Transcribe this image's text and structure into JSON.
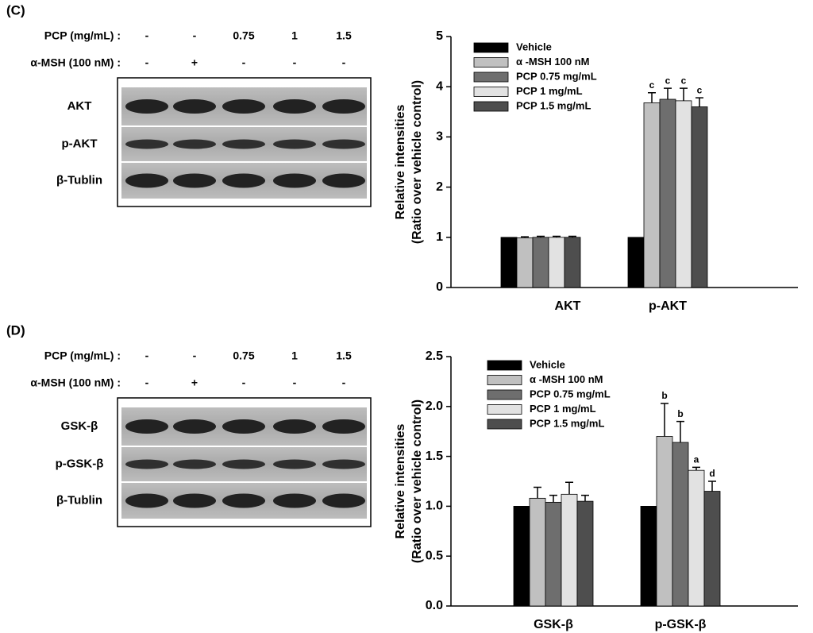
{
  "panels": [
    {
      "label": "(C)",
      "rows": [
        {
          "name": "PCP (mg/mL) :",
          "cells": [
            "-",
            "-",
            "0.75",
            "1",
            "1.5"
          ]
        },
        {
          "name": "α-MSH (100 nM) :",
          "cells": [
            "-",
            "+",
            "-",
            "-",
            "-"
          ]
        }
      ],
      "blots": [
        "AKT",
        "p-AKT",
        "β-Tublin"
      ]
    },
    {
      "label": "(D)",
      "rows": [
        {
          "name": "PCP (mg/mL) :",
          "cells": [
            "-",
            "-",
            "0.75",
            "1",
            "1.5"
          ]
        },
        {
          "name": "α-MSH (100 nM) :",
          "cells": [
            "-",
            "+",
            "-",
            "-",
            "-"
          ]
        }
      ],
      "blots": [
        "GSK-β",
        "p-GSK-β",
        "β-Tublin"
      ]
    }
  ],
  "chart_data": [
    {
      "type": "bar",
      "categories": [
        "AKT",
        "p-AKT"
      ],
      "y_label": [
        "Relative intensities",
        "(Ratio over vehicle control)"
      ],
      "ylim": [
        0,
        5
      ],
      "yticks": [
        0,
        1,
        2,
        3,
        4,
        5
      ],
      "legend": "upper left",
      "series": [
        {
          "name": "Vehicle",
          "color": "#000000",
          "values": [
            1,
            1
          ]
        },
        {
          "name": "α -MSH 100 nM",
          "color": "#c0c0c0",
          "values": [
            0.99,
            3.68
          ],
          "errors": [
            0.02,
            0.2
          ],
          "annotations": [
            null,
            "c"
          ]
        },
        {
          "name": "PCP 0.75 mg/mL",
          "color": "#6e6e6e",
          "values": [
            1.0,
            3.75
          ],
          "errors": [
            0.02,
            0.22
          ],
          "annotations": [
            null,
            "c"
          ]
        },
        {
          "name": "PCP 1 mg/mL",
          "color": "#e2e2e2",
          "values": [
            1.0,
            3.72
          ],
          "errors": [
            0.02,
            0.25
          ],
          "annotations": [
            null,
            "c"
          ]
        },
        {
          "name": "PCP 1.5 mg/mL",
          "color": "#4e4e4e",
          "values": [
            1.0,
            3.6
          ],
          "errors": [
            0.02,
            0.18
          ],
          "annotations": [
            null,
            "c"
          ]
        }
      ]
    },
    {
      "type": "bar",
      "categories": [
        "GSK-β",
        "p-GSK-β"
      ],
      "y_label": [
        "Relative intensities",
        "(Ratio over vehicle control)"
      ],
      "ylim": [
        0,
        2.5
      ],
      "yticks": [
        {
          "value": 0,
          "label": "0.0"
        },
        0.5,
        {
          "value": 1,
          "label": "1.0"
        },
        1.5,
        {
          "value": 2,
          "label": "2.0"
        },
        2.5
      ],
      "legend": "upper left",
      "series": [
        {
          "name": "Vehicle",
          "color": "#000000",
          "values": [
            1,
            1
          ]
        },
        {
          "name": "α -MSH 100 nM",
          "color": "#c0c0c0",
          "values": [
            1.08,
            1.7
          ],
          "errors": [
            0.11,
            0.33
          ],
          "annotations": [
            null,
            "b"
          ]
        },
        {
          "name": "PCP 0.75 mg/mL",
          "color": "#6e6e6e",
          "values": [
            1.04,
            1.64
          ],
          "errors": [
            0.07,
            0.21
          ],
          "annotations": [
            null,
            "b"
          ]
        },
        {
          "name": "PCP 1 mg/mL",
          "color": "#e2e2e2",
          "values": [
            1.12,
            1.36
          ],
          "errors": [
            0.12,
            0.03
          ],
          "annotations": [
            null,
            "a"
          ]
        },
        {
          "name": "PCP 1.5 mg/mL",
          "color": "#4e4e4e",
          "values": [
            1.05,
            1.15
          ],
          "errors": [
            0.06,
            0.1
          ],
          "annotations": [
            null,
            "d"
          ]
        }
      ]
    }
  ]
}
